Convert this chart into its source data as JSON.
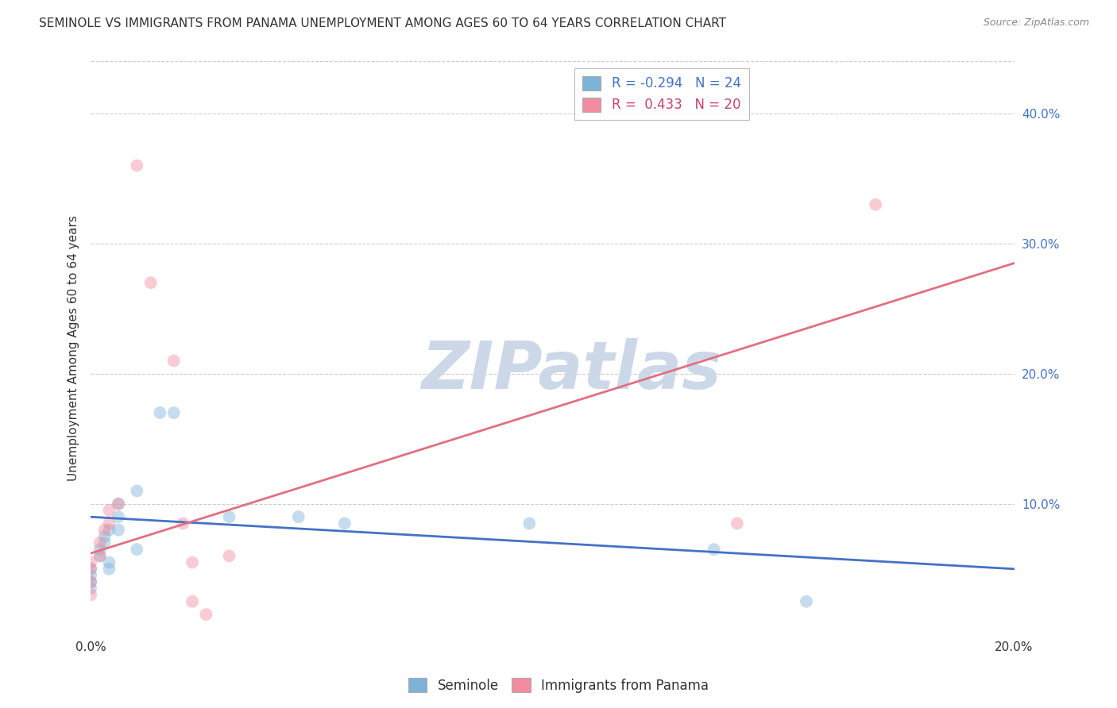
{
  "title": "SEMINOLE VS IMMIGRANTS FROM PANAMA UNEMPLOYMENT AMONG AGES 60 TO 64 YEARS CORRELATION CHART",
  "source": "Source: ZipAtlas.com",
  "ylabel": "Unemployment Among Ages 60 to 64 years",
  "xlim": [
    0.0,
    0.2
  ],
  "ylim": [
    0.0,
    0.44
  ],
  "xticks": [
    0.0,
    0.05,
    0.1,
    0.15,
    0.2
  ],
  "yticks_right": [
    0.1,
    0.2,
    0.3,
    0.4
  ],
  "ytick_labels_right": [
    "10.0%",
    "20.0%",
    "30.0%",
    "40.0%"
  ],
  "xtick_labels": [
    "0.0%",
    "",
    "",
    "",
    "20.0%"
  ],
  "background_color": "#ffffff",
  "watermark": "ZIPatlas",
  "legend_r1": "R = -0.294   N = 24",
  "legend_r2": "R =  0.433   N = 20",
  "seminole_points": [
    [
      0.0,
      0.035
    ],
    [
      0.0,
      0.04
    ],
    [
      0.0,
      0.045
    ],
    [
      0.0,
      0.05
    ],
    [
      0.002,
      0.06
    ],
    [
      0.002,
      0.065
    ],
    [
      0.003,
      0.07
    ],
    [
      0.003,
      0.075
    ],
    [
      0.004,
      0.08
    ],
    [
      0.004,
      0.055
    ],
    [
      0.004,
      0.05
    ],
    [
      0.006,
      0.1
    ],
    [
      0.006,
      0.09
    ],
    [
      0.006,
      0.08
    ],
    [
      0.01,
      0.11
    ],
    [
      0.01,
      0.065
    ],
    [
      0.015,
      0.17
    ],
    [
      0.018,
      0.17
    ],
    [
      0.03,
      0.09
    ],
    [
      0.045,
      0.09
    ],
    [
      0.055,
      0.085
    ],
    [
      0.095,
      0.085
    ],
    [
      0.135,
      0.065
    ],
    [
      0.155,
      0.025
    ]
  ],
  "panama_points": [
    [
      0.0,
      0.03
    ],
    [
      0.0,
      0.04
    ],
    [
      0.0,
      0.05
    ],
    [
      0.0,
      0.055
    ],
    [
      0.002,
      0.06
    ],
    [
      0.002,
      0.07
    ],
    [
      0.003,
      0.08
    ],
    [
      0.004,
      0.095
    ],
    [
      0.004,
      0.085
    ],
    [
      0.006,
      0.1
    ],
    [
      0.01,
      0.36
    ],
    [
      0.013,
      0.27
    ],
    [
      0.018,
      0.21
    ],
    [
      0.02,
      0.085
    ],
    [
      0.022,
      0.055
    ],
    [
      0.022,
      0.025
    ],
    [
      0.025,
      0.015
    ],
    [
      0.03,
      0.06
    ],
    [
      0.14,
      0.085
    ],
    [
      0.17,
      0.33
    ]
  ],
  "seminole_line_x": [
    0.0,
    0.2
  ],
  "seminole_line_y": [
    0.09,
    0.05
  ],
  "panama_line_x": [
    0.0,
    0.2
  ],
  "panama_line_y": [
    0.062,
    0.285
  ],
  "seminole_color": "#7eb3d8",
  "panama_color": "#f28ca0",
  "line_seminole_color": "#4472c4",
  "line_panama_color": "#e07080",
  "marker_size": 130,
  "marker_alpha": 0.45,
  "title_fontsize": 11,
  "axis_label_fontsize": 11,
  "tick_fontsize": 11,
  "legend_fontsize": 12,
  "right_tick_color": "#4472c4",
  "watermark_color": "#ccd8e8",
  "watermark_fontsize": 60,
  "grid_color": "#cccccc",
  "grid_style": "--",
  "grid_lw": 0.8
}
